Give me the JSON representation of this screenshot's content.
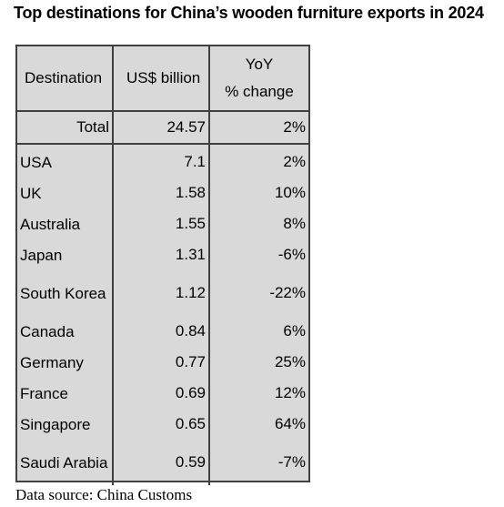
{
  "title": "Top destinations for China’s wooden furniture exports in 2024",
  "source": "Data source: China Customs",
  "colors": {
    "table_background": "#d9d9d9",
    "border": "#404040",
    "text": "#000000"
  },
  "chart_data": {
    "type": "table",
    "title": "Top destinations for China’s wooden furniture exports in 2024",
    "columns": [
      "Destination",
      "US$ billion",
      "YoY % change"
    ],
    "header": {
      "destination": "Destination",
      "value": "US$ billion",
      "yoy_line1": "YoY",
      "yoy_line2": "% change"
    },
    "total": {
      "label": "Total",
      "value_text": "24.57",
      "yoy_text": "2%",
      "value": 24.57,
      "yoy": 2
    },
    "rows": [
      {
        "name": "USA",
        "value_text": "7.1",
        "yoy_text": "2%",
        "value": 7.1,
        "yoy": 2
      },
      {
        "name": "UK",
        "value_text": "1.58",
        "yoy_text": "10%",
        "value": 1.58,
        "yoy": 10
      },
      {
        "name": "Australia",
        "value_text": "1.55",
        "yoy_text": "8%",
        "value": 1.55,
        "yoy": 8
      },
      {
        "name": "Japan",
        "value_text": "1.31",
        "yoy_text": "-6%",
        "value": 1.31,
        "yoy": -6
      },
      {
        "name": "South Korea",
        "value_text": "1.12",
        "yoy_text": "-22%",
        "value": 1.12,
        "yoy": -22
      },
      {
        "name": "Canada",
        "value_text": "0.84",
        "yoy_text": "6%",
        "value": 0.84,
        "yoy": 6
      },
      {
        "name": "Germany",
        "value_text": "0.77",
        "yoy_text": "25%",
        "value": 0.77,
        "yoy": 25
      },
      {
        "name": "France",
        "value_text": "0.69",
        "yoy_text": "12%",
        "value": 0.69,
        "yoy": 12
      },
      {
        "name": "Singapore",
        "value_text": "0.65",
        "yoy_text": "64%",
        "value": 0.65,
        "yoy": 64
      },
      {
        "name": "Saudi Arabia",
        "value_text": "0.59",
        "yoy_text": "-7%",
        "value": 0.59,
        "yoy": -7
      }
    ]
  }
}
